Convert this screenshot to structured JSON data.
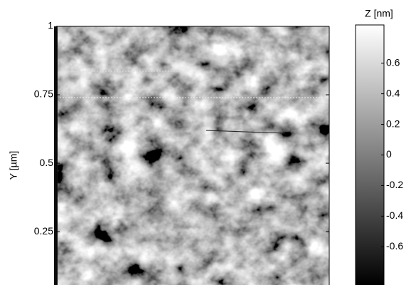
{
  "chart_data": {
    "type": "image",
    "ylabel": "Y [µm]",
    "ylim": [
      0.055,
      1
    ],
    "yticks": [
      1,
      0.75,
      0.5,
      0.25
    ],
    "colorbar_label": "Z [nm]",
    "zlim": [
      -0.85,
      0.85
    ],
    "zticks": [
      0.6,
      0.4,
      0.2,
      0,
      -0.2,
      -0.4,
      -0.6
    ],
    "colormap": [
      "#000000",
      "#ffffff"
    ]
  }
}
